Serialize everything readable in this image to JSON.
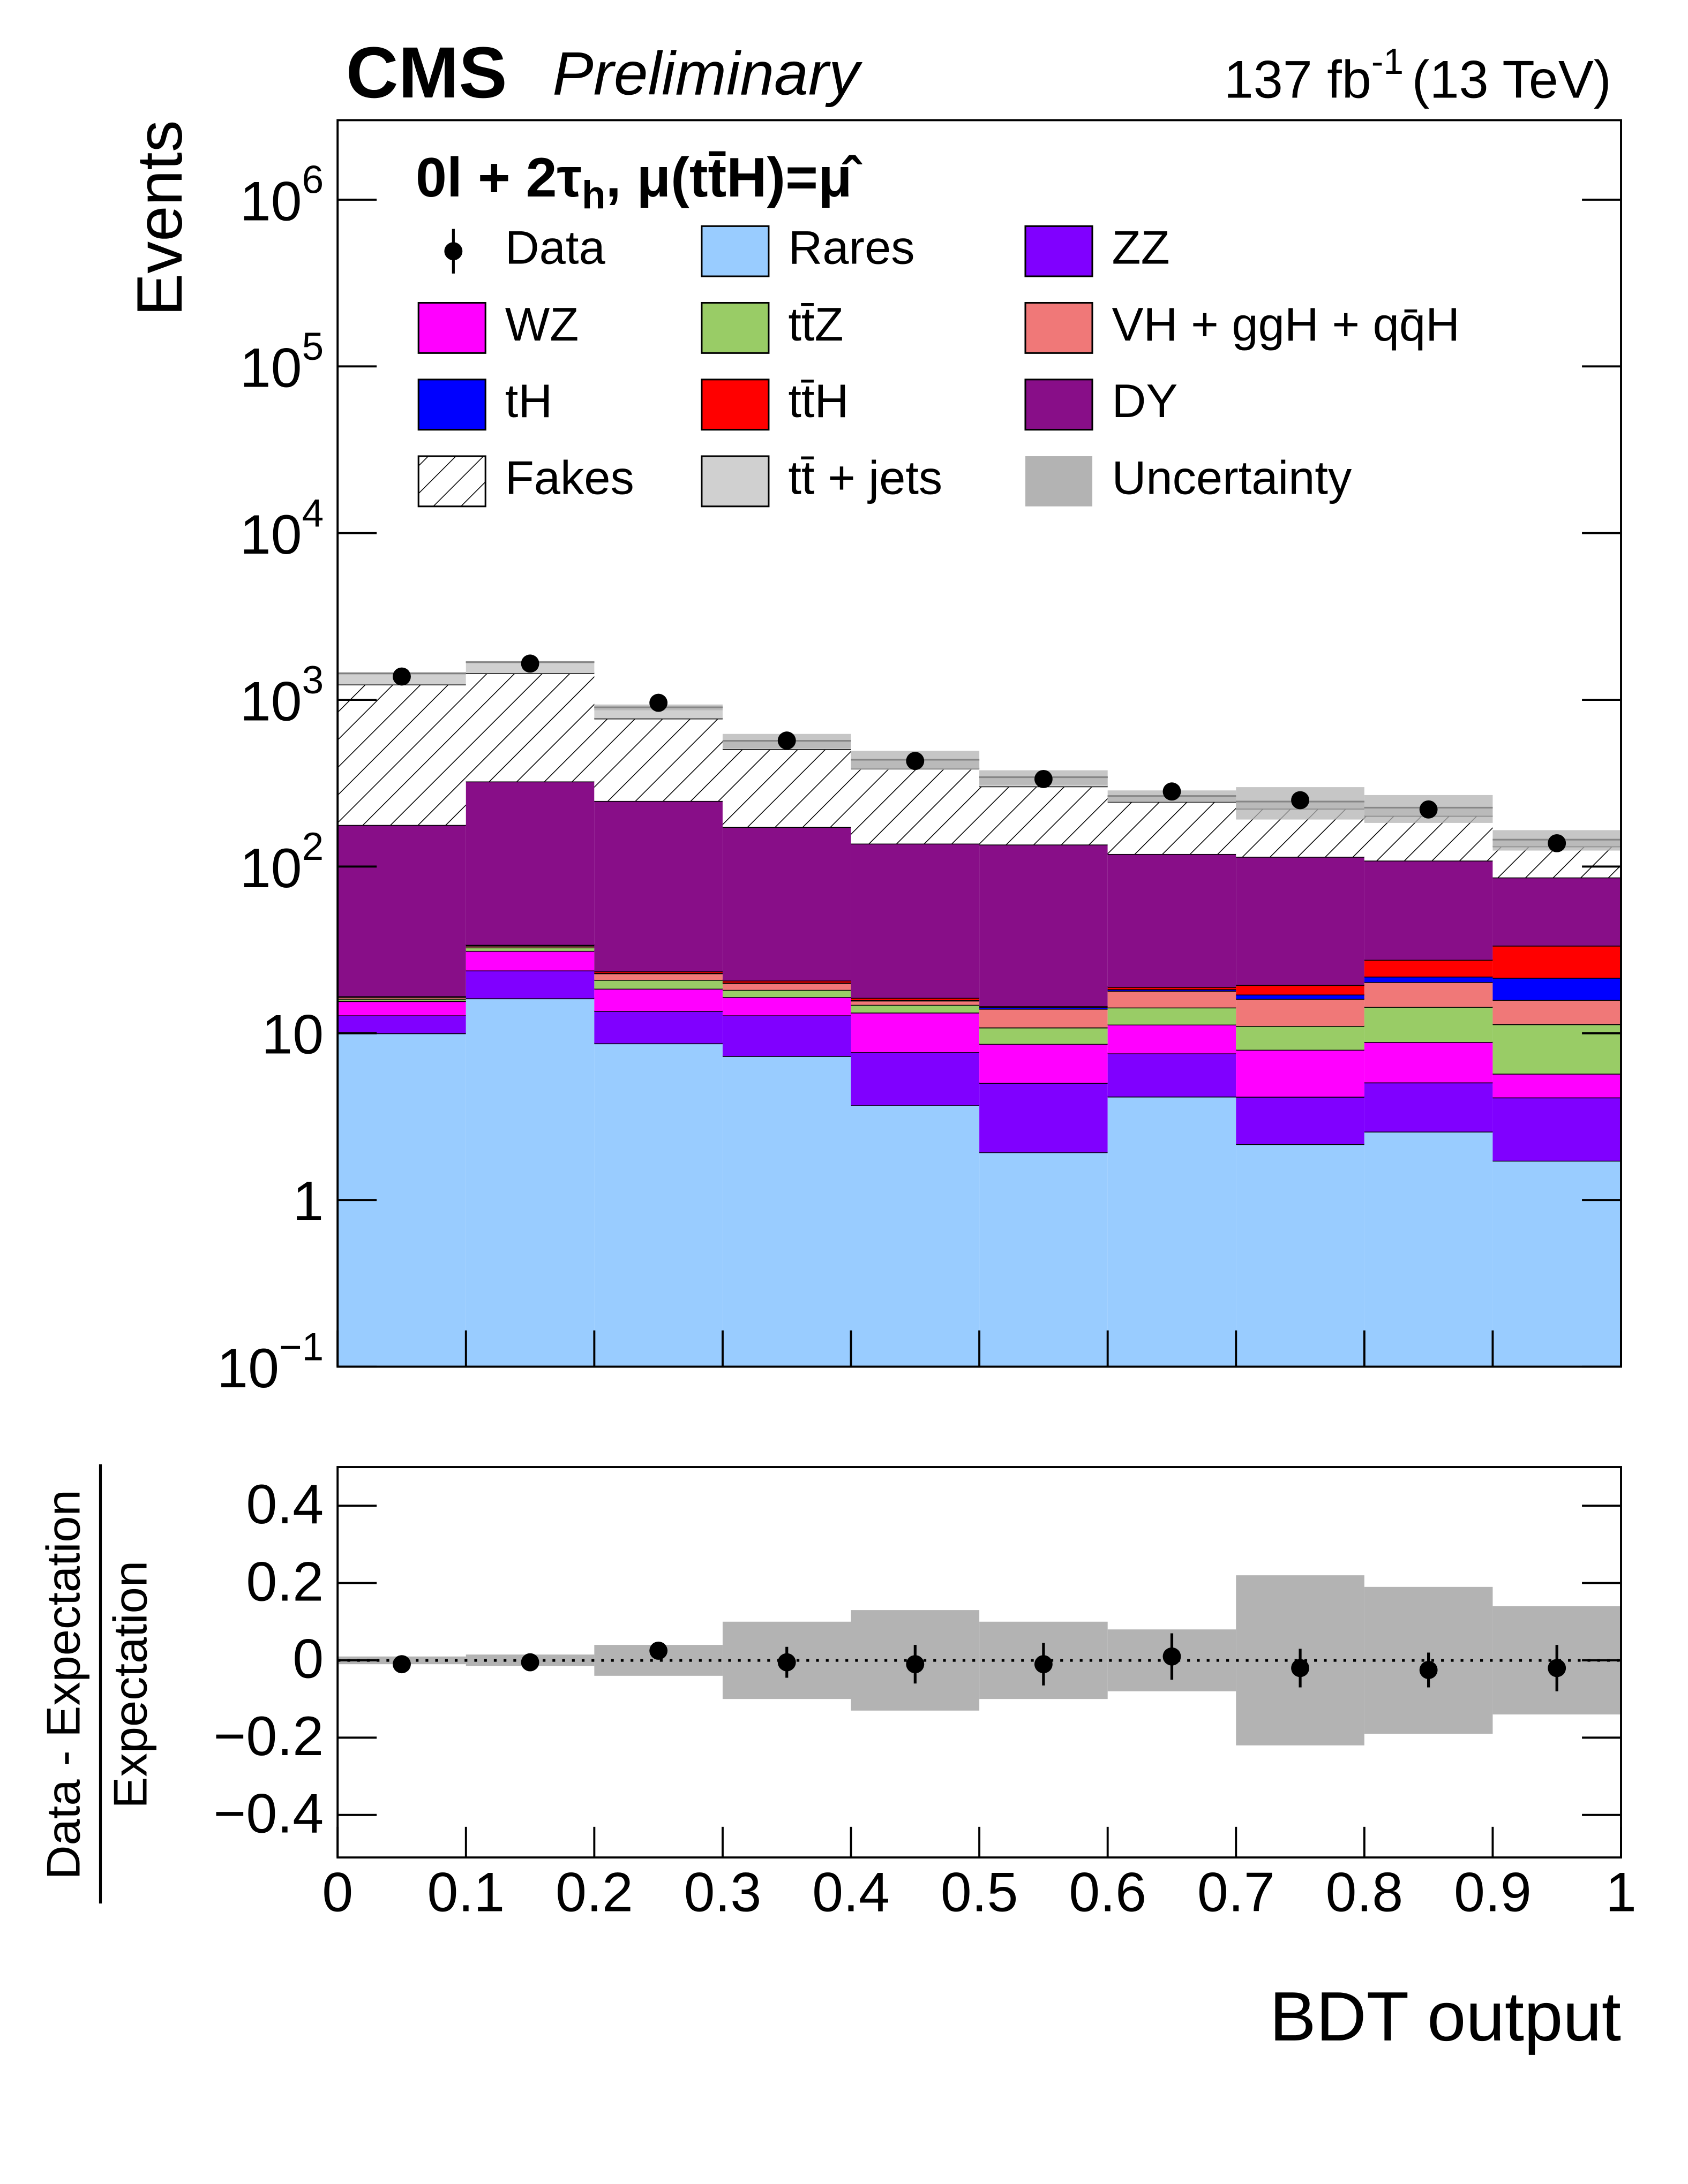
{
  "chart_data": [
    {
      "type": "stacked-histogram",
      "experiment": "CMS",
      "status": "Preliminary",
      "lumi": {
        "text": "137 fb",
        "sup": "-1",
        "post": "(13 TeV)"
      },
      "category": {
        "text": "0l + 2τ",
        "sub": "h",
        "post": ",  μ(tt̄H)=μ̂"
      },
      "ylabel": "Events",
      "bins": [
        0,
        0.1,
        0.2,
        0.3,
        0.4,
        0.5,
        0.6,
        0.7,
        0.8,
        0.9,
        1
      ],
      "log_scale": true,
      "ylim": [
        0.1,
        3000000
      ],
      "yticks": [
        {
          "value": 0.1,
          "label": "10",
          "sup": "−1"
        },
        1,
        10,
        {
          "value": 100,
          "label": "10",
          "sup": "2"
        },
        {
          "value": 1000,
          "label": "10",
          "sup": "3"
        },
        {
          "value": 10000,
          "label": "10",
          "sup": "4"
        },
        {
          "value": 100000,
          "label": "10",
          "sup": "5"
        },
        {
          "value": 1000000,
          "label": "10",
          "sup": "6"
        }
      ],
      "data": {
        "name": "Data",
        "color": "#000000",
        "values": [
          1380,
          1650,
          960,
          570,
          430,
          335,
          282,
          250,
          220,
          138
        ]
      },
      "series": [
        {
          "name": "Rares",
          "color": "#99ccff",
          "values": [
            10,
            16.2,
            8.7,
            7.3,
            3.7,
            1.93,
            4.17,
            2.16,
            2.57,
            1.72
          ]
        },
        {
          "name": "ZZ",
          "color": "#8000ff",
          "values": [
            2.8,
            7.6,
            4.9,
            5.5,
            4.0,
            3.1,
            3.4,
            2.0,
            2.5,
            2.4
          ]
        },
        {
          "name": "WZ",
          "color": "#ff00ff",
          "values": [
            2.8,
            7.4,
            4.9,
            3.7,
            5.6,
            3.6,
            3.7,
            3.8,
            3.8,
            1.6
          ]
        },
        {
          "name": "tt̄Z",
          "color": "#99cc66",
          "values": [
            0.5,
            1.5,
            2.4,
            1.7,
            1.5,
            2.2,
            3.0,
            3.1,
            5.5,
            5.6
          ]
        },
        {
          "name": "VH + ggH + qq̄H",
          "color": "#f07878",
          "values": [
            0.4,
            0.8,
            2.0,
            1.8,
            0.9,
            3.2,
            3.7,
            5.0,
            5.9,
            4.5
          ]
        },
        {
          "name": "tH",
          "color": "#0000ff",
          "values": [
            0.05,
            0.1,
            0.1,
            0.1,
            0.1,
            0.3,
            0.4,
            1.0,
            1.6,
            5.7
          ]
        },
        {
          "name": "tt̄H",
          "color": "#ff0000",
          "values": [
            0.1,
            0.3,
            0.5,
            0.6,
            0.5,
            0.2,
            0.6,
            2.4,
            5.7,
            12.0
          ]
        },
        {
          "name": "DY",
          "color": "#880e88",
          "values": [
            161,
            290,
            224,
            152,
            121,
            121,
            100,
            95,
            81,
            52.5
          ]
        },
        {
          "name": "Fakes",
          "color": "hatch",
          "values": [
            1058,
            1119,
            525,
            333,
            250,
            167,
            126,
            108,
            93,
            46
          ]
        },
        {
          "name": "tt̄ + jets",
          "color": "#d0d0d0",
          "values": [
            207,
            240,
            129,
            62,
            50,
            41,
            20,
            23,
            24,
            13
          ]
        }
      ],
      "uncertainty": {
        "name": "Uncertainty",
        "color": "#b3b3b3",
        "values": [
          0.01,
          0.015,
          0.04,
          0.1,
          0.13,
          0.1,
          0.08,
          0.22,
          0.19,
          0.14
        ]
      }
    },
    {
      "type": "scatter",
      "ylabel": {
        "numerator": "Data - Expectation",
        "denominator": "Expectation"
      },
      "xlabel": "BDT output",
      "xlim": [
        0,
        1
      ],
      "xticks": [
        0,
        0.1,
        0.2,
        0.3,
        0.4,
        0.5,
        0.6,
        0.7,
        0.8,
        0.9,
        1
      ],
      "ylim": [
        -0.51,
        0.5
      ],
      "yticks": [
        0.4,
        0.2,
        0,
        {
          "value": -0.2,
          "label": "−0.2"
        },
        {
          "value": -0.4,
          "label": "−0.4"
        }
      ],
      "values": [
        -0.01,
        -0.005,
        0.025,
        -0.005,
        -0.01,
        -0.01,
        0.01,
        -0.02,
        -0.025,
        -0.02
      ],
      "errors": [
        0.01,
        0.01,
        0.02,
        0.04,
        0.05,
        0.055,
        0.06,
        0.05,
        0.045,
        0.06
      ]
    }
  ]
}
